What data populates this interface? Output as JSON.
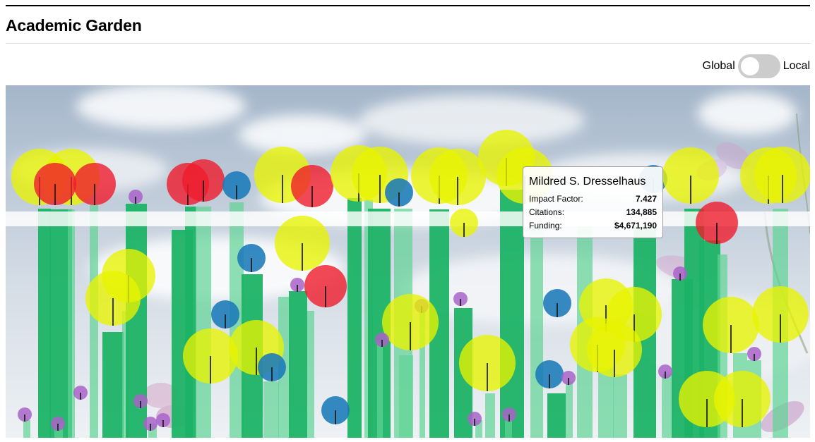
{
  "page": {
    "title": "Academic Garden"
  },
  "toggle": {
    "left_label": "Global",
    "right_label": "Local",
    "state": "Global"
  },
  "tooltip": {
    "name": "Mildred S. Dresselhaus",
    "rows": [
      {
        "label": "Impact Factor:",
        "value": "7.427"
      },
      {
        "label": "Citations:",
        "value": "134,885"
      },
      {
        "label": "Funding:",
        "value": "$4,671,190"
      }
    ]
  },
  "colors": {
    "stem_dark": "#1db366",
    "stem_light": "#5fd394",
    "stem_band": "#ffffff",
    "flower_yellow": "#e8f300",
    "flower_red": "#ef1c2c",
    "flower_blue": "#1a7ab8",
    "flower_purple": "#a963c9",
    "sky_top": "#a9b9cc",
    "sky_bottom": "#e9edf1"
  },
  "chart_data": {
    "type": "scatter",
    "title": "",
    "xlabel": "",
    "ylabel": "",
    "legend": "none",
    "grid": false,
    "encoding": "each flower is one researcher: stem = funding, bloom size = citations, bloom colour = impact factor band",
    "scholars": [
      {
        "name": "Mildred S. Dresselhaus",
        "impact_factor": 7.427,
        "citations": 134885,
        "funding": 4671190
      }
    ]
  }
}
